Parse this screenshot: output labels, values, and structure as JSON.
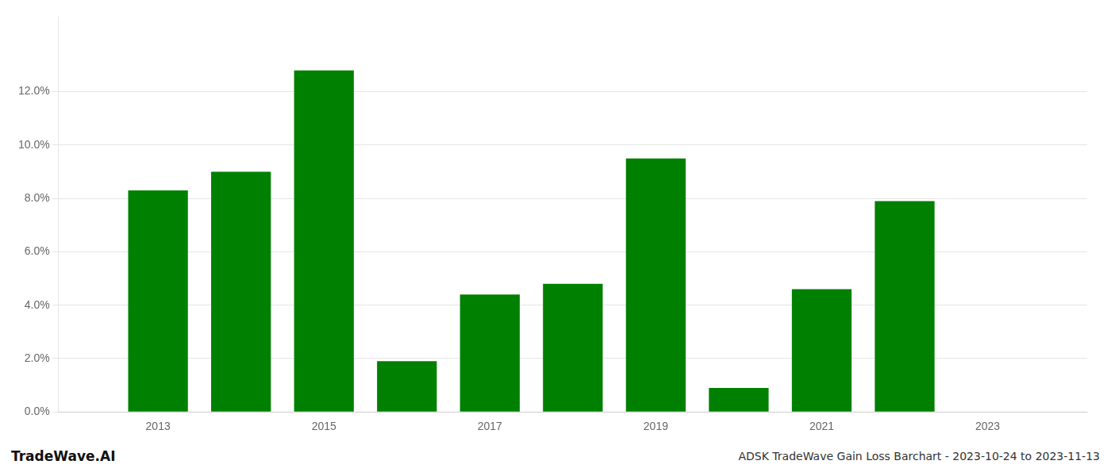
{
  "chart_data": {
    "type": "bar",
    "title": "ADSK TradeWave Gain Loss Barchart - 2023-10-24 to 2023-11-13",
    "annotations": [
      "TradeWave.AI"
    ],
    "x": [
      2013,
      2014,
      2015,
      2016,
      2017,
      2018,
      2019,
      2020,
      2021,
      2022,
      2023
    ],
    "values": [
      0.083,
      0.09,
      0.128,
      0.019,
      0.044,
      0.048,
      0.095,
      0.009,
      0.046,
      0.079,
      0.0
    ],
    "color": "#008000",
    "xlim": [
      2011.8,
      2024.2
    ],
    "xticks": [
      2013,
      2015,
      2017,
      2019,
      2021,
      2023
    ],
    "ylim": [
      0,
      0.148
    ],
    "yticks": [
      {
        "value": 0.0,
        "label": "0.0%"
      },
      {
        "value": 0.02,
        "label": "2.0%"
      },
      {
        "value": 0.04,
        "label": "4.0%"
      },
      {
        "value": 0.06,
        "label": "6.0%"
      },
      {
        "value": 0.08,
        "label": "8.0%"
      },
      {
        "value": 0.1,
        "label": "10.0%"
      },
      {
        "value": 0.12,
        "label": "12.0%"
      }
    ],
    "grid": "y"
  }
}
